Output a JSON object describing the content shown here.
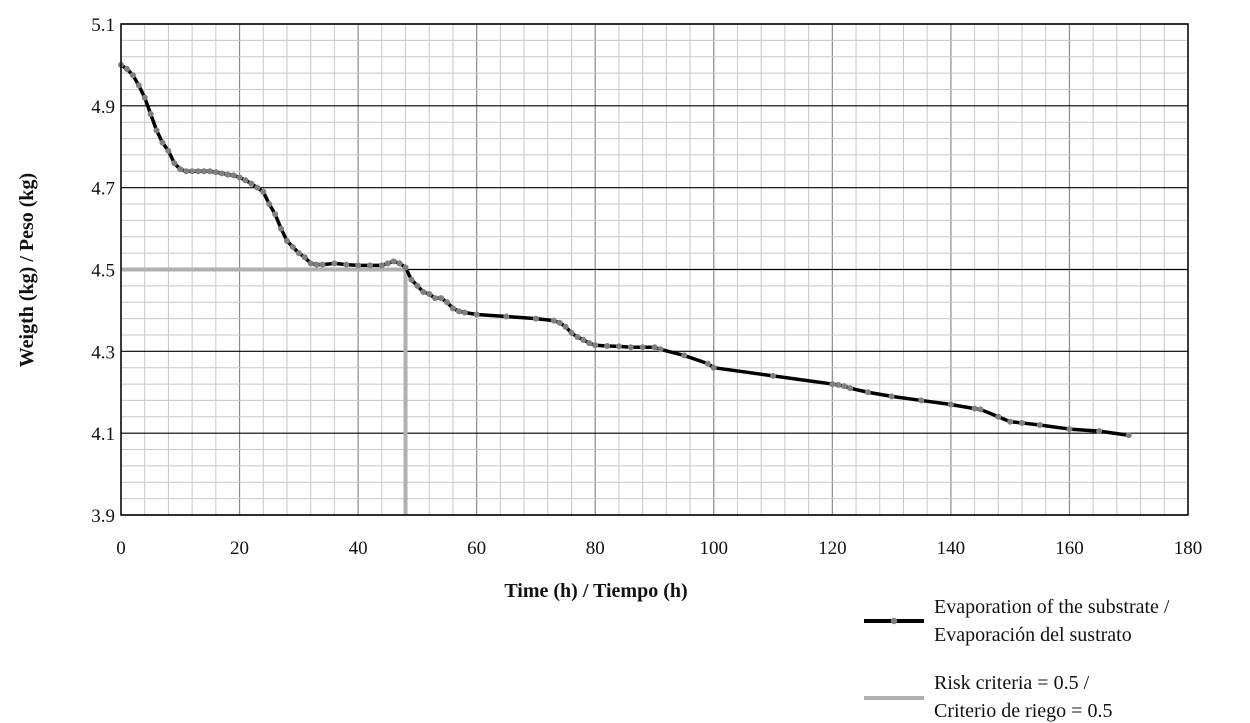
{
  "chart_data": {
    "type": "line",
    "title": "",
    "xlabel": "Time (h) / Tiempo (h)",
    "ylabel": "Weigth (kg) / Peso (kg)",
    "xlim": [
      0,
      180
    ],
    "ylim": [
      3.9,
      5.1
    ],
    "x_ticks": [
      0,
      20,
      40,
      60,
      80,
      100,
      120,
      140,
      160,
      180
    ],
    "y_ticks": [
      3.9,
      4.1,
      4.3,
      4.5,
      4.7,
      4.9,
      5.1
    ],
    "x_tick_labels": [
      "0",
      "20",
      "40",
      "60",
      "80",
      "100",
      "120",
      "140",
      "160",
      "180"
    ],
    "y_tick_labels": [
      "3.9",
      "4.1",
      "4.3",
      "4.5",
      "4.7",
      "4.9",
      "5.1"
    ],
    "x_minor_step": 4,
    "y_minor_step": 0.04,
    "grid": true,
    "legend_position": "bottom-right",
    "series": [
      {
        "name": "Evaporation of the substrate / Evaporación del sustrato",
        "legend_lines": [
          "Evaporation of the substrate /",
          "Evaporación del sustrato"
        ],
        "color": "#000000",
        "marker_color": "#808080",
        "points": [
          [
            0,
            5.0
          ],
          [
            1,
            4.99
          ],
          [
            2,
            4.975
          ],
          [
            3,
            4.95
          ],
          [
            4,
            4.92
          ],
          [
            5,
            4.88
          ],
          [
            6,
            4.84
          ],
          [
            7,
            4.81
          ],
          [
            8,
            4.79
          ],
          [
            9,
            4.76
          ],
          [
            10,
            4.745
          ],
          [
            11,
            4.74
          ],
          [
            12,
            4.74
          ],
          [
            13,
            4.74
          ],
          [
            14,
            4.74
          ],
          [
            15,
            4.74
          ],
          [
            16,
            4.738
          ],
          [
            17,
            4.735
          ],
          [
            18,
            4.732
          ],
          [
            19,
            4.73
          ],
          [
            20,
            4.725
          ],
          [
            21,
            4.718
          ],
          [
            22,
            4.71
          ],
          [
            23,
            4.7
          ],
          [
            24,
            4.69
          ],
          [
            25,
            4.66
          ],
          [
            26,
            4.635
          ],
          [
            27,
            4.6
          ],
          [
            28,
            4.57
          ],
          [
            29,
            4.555
          ],
          [
            30,
            4.54
          ],
          [
            31,
            4.53
          ],
          [
            32,
            4.515
          ],
          [
            33,
            4.512
          ],
          [
            34,
            4.512
          ],
          [
            36,
            4.515
          ],
          [
            38,
            4.512
          ],
          [
            40,
            4.51
          ],
          [
            42,
            4.51
          ],
          [
            44,
            4.51
          ],
          [
            45,
            4.515
          ],
          [
            46,
            4.52
          ],
          [
            47,
            4.515
          ],
          [
            48,
            4.505
          ],
          [
            49,
            4.475
          ],
          [
            50,
            4.46
          ],
          [
            51,
            4.445
          ],
          [
            52,
            4.44
          ],
          [
            53,
            4.43
          ],
          [
            54,
            4.43
          ],
          [
            55,
            4.42
          ],
          [
            56,
            4.405
          ],
          [
            57,
            4.398
          ],
          [
            58,
            4.395
          ],
          [
            60,
            4.39
          ],
          [
            65,
            4.385
          ],
          [
            70,
            4.38
          ],
          [
            73,
            4.375
          ],
          [
            74,
            4.37
          ],
          [
            75,
            4.36
          ],
          [
            76,
            4.345
          ],
          [
            77,
            4.335
          ],
          [
            78,
            4.328
          ],
          [
            79,
            4.32
          ],
          [
            80,
            4.315
          ],
          [
            82,
            4.313
          ],
          [
            84,
            4.312
          ],
          [
            86,
            4.31
          ],
          [
            88,
            4.31
          ],
          [
            90,
            4.31
          ],
          [
            91,
            4.305
          ],
          [
            95,
            4.29
          ],
          [
            99,
            4.27
          ],
          [
            100,
            4.26
          ],
          [
            110,
            4.24
          ],
          [
            120,
            4.22
          ],
          [
            121,
            4.218
          ],
          [
            122,
            4.215
          ],
          [
            123,
            4.21
          ],
          [
            126,
            4.2
          ],
          [
            130,
            4.19
          ],
          [
            135,
            4.18
          ],
          [
            140,
            4.17
          ],
          [
            144,
            4.16
          ],
          [
            145,
            4.158
          ],
          [
            148,
            4.14
          ],
          [
            150,
            4.128
          ],
          [
            152,
            4.125
          ],
          [
            155,
            4.12
          ],
          [
            160,
            4.11
          ],
          [
            165,
            4.105
          ],
          [
            170,
            4.095
          ]
        ]
      },
      {
        "name": "Risk criteria = 0.5 / Criterio de riego = 0.5",
        "legend_lines": [
          "Risk criteria = 0.5 /",
          "Criterio de riego = 0.5"
        ],
        "color": "#b0b0b0",
        "points": [
          [
            0,
            4.5
          ],
          [
            48,
            4.5
          ],
          [
            48,
            3.9
          ]
        ]
      }
    ]
  }
}
